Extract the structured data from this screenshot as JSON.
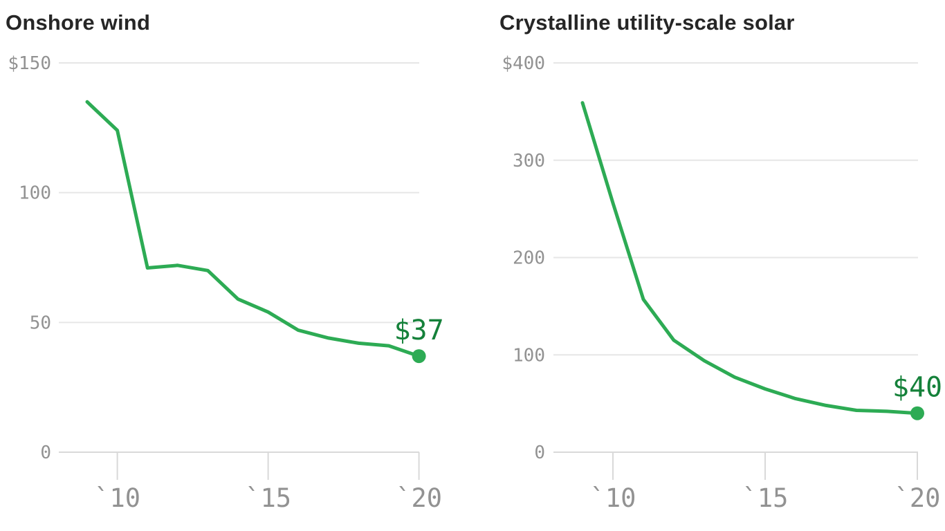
{
  "page_title": "Wind and solar cost charts",
  "colors": {
    "line": "#2dab54",
    "end_label": "#15813a",
    "title_text": "#262626",
    "axis_text": "#929292",
    "gridline": "#e6e6e6",
    "axis_line": "#d9d9d9",
    "background": "#ffffff"
  },
  "chart_data": [
    {
      "type": "line",
      "title": "Onshore wind",
      "x": [
        2009,
        2010,
        2011,
        2012,
        2013,
        2014,
        2015,
        2016,
        2017,
        2018,
        2019,
        2020
      ],
      "values": [
        135,
        124,
        71,
        72,
        70,
        59,
        54,
        47,
        44,
        42,
        41,
        37
      ],
      "end_label": "$37",
      "ylim": [
        0,
        150
      ],
      "yticks": [
        0,
        50,
        100,
        150
      ],
      "ytick_labels": [
        "0",
        "50",
        "100",
        "$150"
      ],
      "xticks": [
        2010,
        2015,
        2020
      ],
      "xtick_labels": [
        "`10",
        "`15",
        "`20"
      ],
      "grid": "horizontal",
      "legend": "none"
    },
    {
      "type": "line",
      "title": "Crystalline utility-scale solar",
      "x": [
        2009,
        2010,
        2011,
        2012,
        2013,
        2014,
        2015,
        2016,
        2017,
        2018,
        2019,
        2020
      ],
      "values": [
        359,
        256,
        157,
        115,
        94,
        77,
        65,
        55,
        48,
        43,
        42,
        40
      ],
      "end_label": "$40",
      "ylim": [
        0,
        400
      ],
      "yticks": [
        0,
        100,
        200,
        300,
        400
      ],
      "ytick_labels": [
        "0",
        "100",
        "200",
        "300",
        "$400"
      ],
      "xticks": [
        2010,
        2015,
        2020
      ],
      "xtick_labels": [
        "`10",
        "`15",
        "`20"
      ],
      "grid": "horizontal",
      "legend": "none"
    }
  ]
}
